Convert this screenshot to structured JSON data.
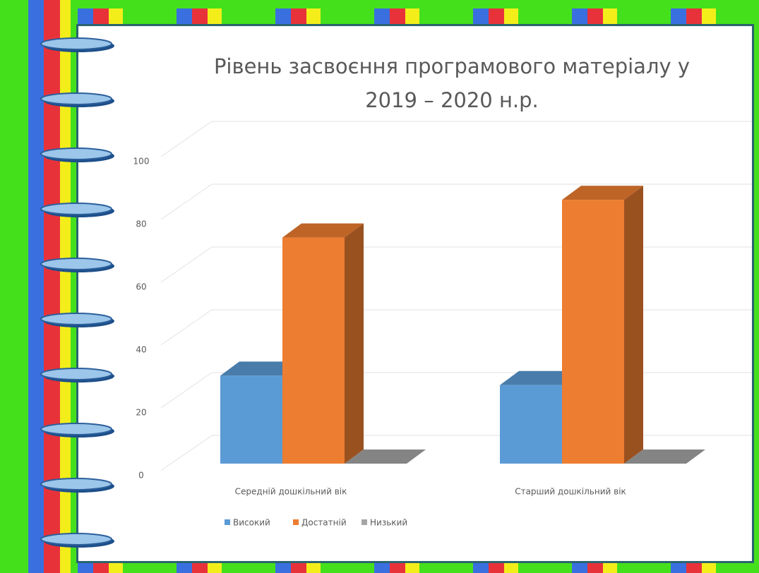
{
  "chart_data": {
    "type": "bar",
    "title": "Рівень засвоєння програмового матеріалу у 2019 – 2020 н.р.",
    "categories": [
      "Середній дошкільний вік",
      "Старший дошкільний вік"
    ],
    "series": [
      {
        "name": "Високий",
        "color": "#5b9bd5",
        "values": [
          28,
          25
        ]
      },
      {
        "name": "Достатній",
        "color": "#ed7d31",
        "values": [
          72,
          84
        ]
      },
      {
        "name": "Низький",
        "color": "#a5a5a5",
        "values": [
          0,
          0
        ]
      }
    ],
    "ylim": [
      0,
      100
    ],
    "yticks": [
      0,
      20,
      40,
      60,
      80,
      100
    ],
    "grid": true,
    "legend": "bottom"
  }
}
